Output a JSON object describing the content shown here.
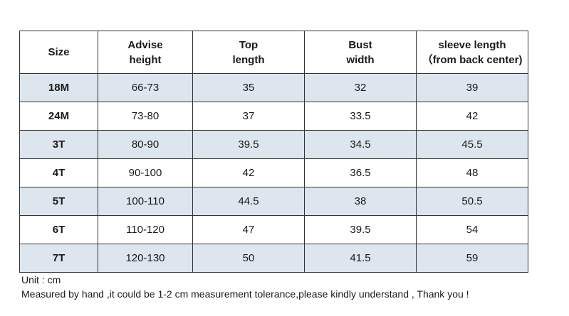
{
  "table": {
    "headers": [
      {
        "line1": "Size",
        "line2": ""
      },
      {
        "line1": "Advise",
        "line2": "height"
      },
      {
        "line1": "Top",
        "line2": "length"
      },
      {
        "line1": "Bust",
        "line2": "width"
      },
      {
        "line1": "sleeve length",
        "line2": "（from back center)"
      }
    ],
    "rows": [
      {
        "size": "18M",
        "height": "66-73",
        "top_length": "35",
        "bust_width": "32",
        "sleeve_length": "39"
      },
      {
        "size": "24M",
        "height": "73-80",
        "top_length": "37",
        "bust_width": "33.5",
        "sleeve_length": "42"
      },
      {
        "size": "3T",
        "height": "80-90",
        "top_length": "39.5",
        "bust_width": "34.5",
        "sleeve_length": "45.5"
      },
      {
        "size": "4T",
        "height": "90-100",
        "top_length": "42",
        "bust_width": "36.5",
        "sleeve_length": "48"
      },
      {
        "size": "5T",
        "height": "100-110",
        "top_length": "44.5",
        "bust_width": "38",
        "sleeve_length": "50.5"
      },
      {
        "size": "6T",
        "height": "110-120",
        "top_length": "47",
        "bust_width": "39.5",
        "sleeve_length": "54"
      },
      {
        "size": "7T",
        "height": "120-130",
        "top_length": "50",
        "bust_width": "41.5",
        "sleeve_length": "59"
      }
    ]
  },
  "notes": {
    "unit": "Unit : cm",
    "measure": "Measured by hand ,it could be 1-2 cm measurement tolerance,please kindly understand , Thank you !"
  },
  "colors": {
    "shaded_row": "#dde5ee",
    "border": "#333333"
  }
}
